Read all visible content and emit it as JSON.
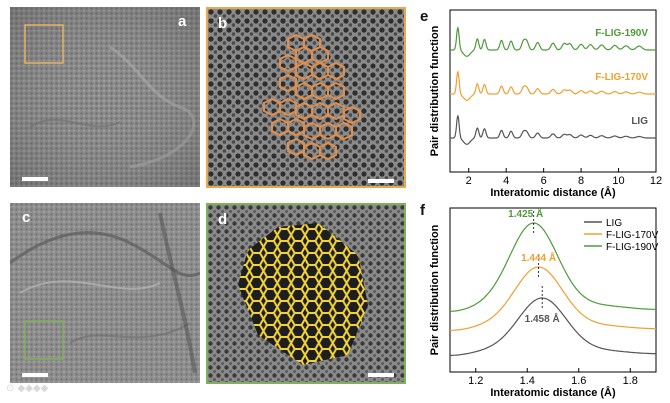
{
  "panels": {
    "a": {
      "letter": "a"
    },
    "b": {
      "letter": "b"
    },
    "c": {
      "letter": "c"
    },
    "d": {
      "letter": "d"
    },
    "e": {
      "letter": "e"
    },
    "f": {
      "letter": "f"
    }
  },
  "colors": {
    "lig": "#555555",
    "f170": "#f0a030",
    "f190": "#4e9a3a",
    "overlay_b": "#e8904a",
    "overlay_d": "#f2d23a",
    "frame_b": "#e8a850",
    "frame_d": "#7fb05a"
  },
  "chart_data": [
    {
      "type": "line",
      "panel": "e",
      "xlabel": "Interatomic distance (Å)",
      "ylabel": "Pair distribution function",
      "xlim": [
        1,
        12
      ],
      "xticks": [
        2,
        4,
        6,
        8,
        10,
        12
      ],
      "series": [
        {
          "name": "F-LIG-190V",
          "color": "#4e9a3a",
          "offset": 2.0
        },
        {
          "name": "F-LIG-170V",
          "color": "#f0a030",
          "offset": 1.0
        },
        {
          "name": "LIG",
          "color": "#555555",
          "offset": 0.0
        }
      ]
    },
    {
      "type": "line",
      "panel": "f",
      "xlabel": "Interatomic distance (Å)",
      "ylabel": "Pair distribution function",
      "xlim": [
        1.1,
        1.9
      ],
      "xticks": [
        1.2,
        1.4,
        1.6,
        1.8
      ],
      "legend": "top-right",
      "series": [
        {
          "name": "LIG",
          "color": "#555555",
          "peak_x": 1.458,
          "peak_label": "1.458 Å"
        },
        {
          "name": "F-LIG-170V",
          "color": "#f0a030",
          "peak_x": 1.444,
          "peak_label": "1.444 Å"
        },
        {
          "name": "F-LIG-190V",
          "color": "#4e9a3a",
          "peak_x": 1.425,
          "peak_label": "1.425 Å"
        }
      ]
    }
  ]
}
